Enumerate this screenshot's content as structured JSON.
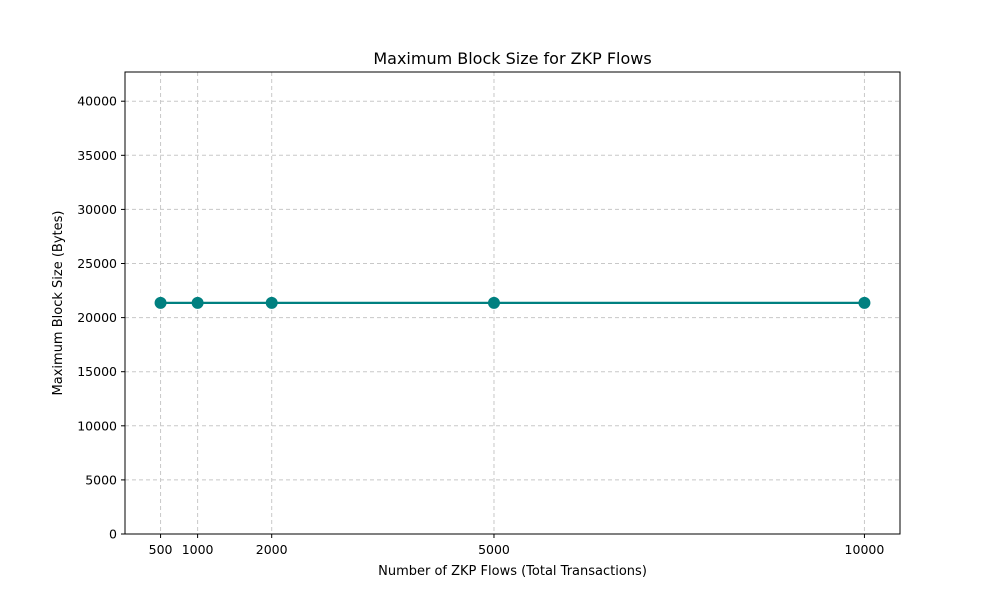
{
  "chart_data": {
    "type": "line",
    "title": "Maximum Block Size for ZKP Flows",
    "xlabel": "Number of ZKP Flows (Total Transactions)",
    "ylabel": "Maximum Block Size (Bytes)",
    "x": [
      500,
      1000,
      2000,
      5000,
      10000
    ],
    "series": [
      {
        "values": [
          21360,
          21360,
          21360,
          21360,
          21360
        ]
      }
    ],
    "xticks": [
      500,
      1000,
      2000,
      5000,
      10000
    ],
    "yticks": [
      0,
      5000,
      10000,
      15000,
      20000,
      25000,
      30000,
      35000,
      40000
    ],
    "xlim": [
      20,
      10480
    ],
    "ylim": [
      0,
      42700
    ],
    "grid": true,
    "line_color": "#008080",
    "marker": "circle"
  }
}
